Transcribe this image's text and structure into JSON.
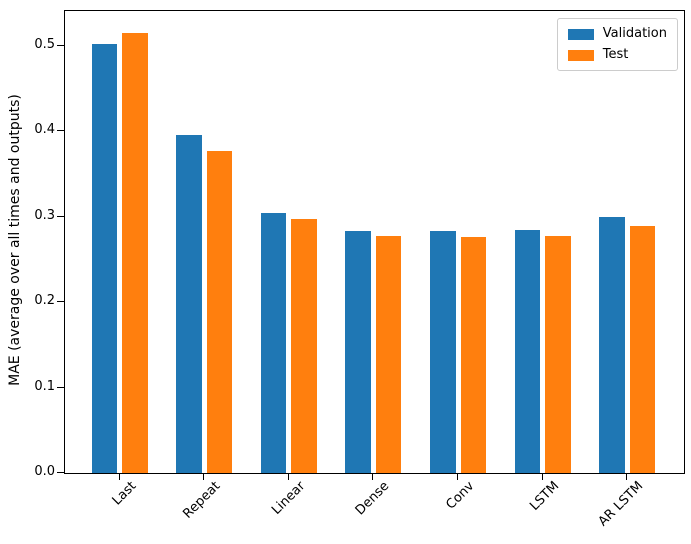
{
  "chart_data": {
    "type": "bar",
    "title": "",
    "categories": [
      "Last",
      "Repeat",
      "Linear",
      "Dense",
      "Conv",
      "LSTM",
      "AR LSTM"
    ],
    "series": [
      {
        "name": "Validation",
        "color": "#1f77b4",
        "values": [
          0.502,
          0.396,
          0.305,
          0.283,
          0.283,
          0.285,
          0.3
        ]
      },
      {
        "name": "Test",
        "color": "#ff7f0e",
        "values": [
          0.515,
          0.377,
          0.298,
          0.277,
          0.276,
          0.278,
          0.289
        ]
      }
    ],
    "xlabel": "",
    "ylabel": "MAE (average over all times and outputs)",
    "ylim": [
      0,
      0.541
    ],
    "yticks": [
      "0.0",
      "0.1",
      "0.2",
      "0.3",
      "0.4",
      "0.5"
    ],
    "ytick_values": [
      0.0,
      0.1,
      0.2,
      0.3,
      0.4,
      0.5
    ],
    "xtick_rotation": 45,
    "grid": false,
    "legend": {
      "position": "upper right",
      "entries": [
        "Validation",
        "Test"
      ]
    },
    "colors": {
      "validation": "#1f77b4",
      "test": "#ff7f0e",
      "spine": "#000000",
      "legend_border": "#cccccc",
      "background": "#ffffff"
    }
  }
}
